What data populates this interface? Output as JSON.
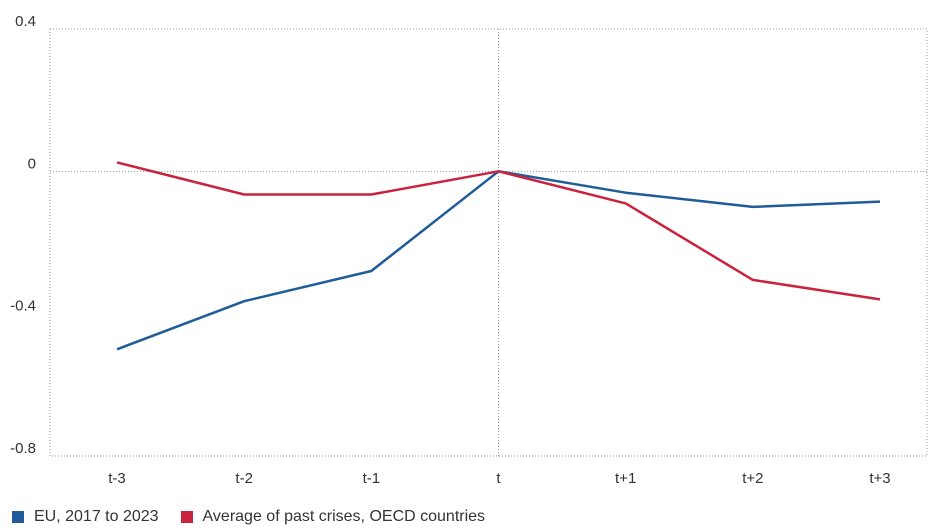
{
  "chart_data": {
    "type": "line",
    "categories": [
      "t-3",
      "t-2",
      "t-1",
      "t",
      "t+1",
      "t+2",
      "t+3"
    ],
    "ylim": [
      -0.8,
      0.4
    ],
    "yticks": [
      "0.4",
      "0",
      "-0.4",
      "-0.8"
    ],
    "ytick_values": [
      0.4,
      0,
      -0.4,
      -0.8
    ],
    "grid": "dotted frame, dotted zero line and dotted vertical line at t",
    "legend_position": "bottom-left",
    "series": [
      {
        "name": "EU, 2017 to 2023",
        "color": "#1f5c99",
        "values": [
          -0.5,
          -0.365,
          -0.28,
          0.0,
          -0.06,
          -0.1,
          -0.085
        ]
      },
      {
        "name": "Average of past crises, OECD countries",
        "color": "#c8243f",
        "values": [
          0.025,
          -0.065,
          -0.065,
          0.0,
          -0.09,
          -0.305,
          -0.36
        ]
      }
    ]
  }
}
